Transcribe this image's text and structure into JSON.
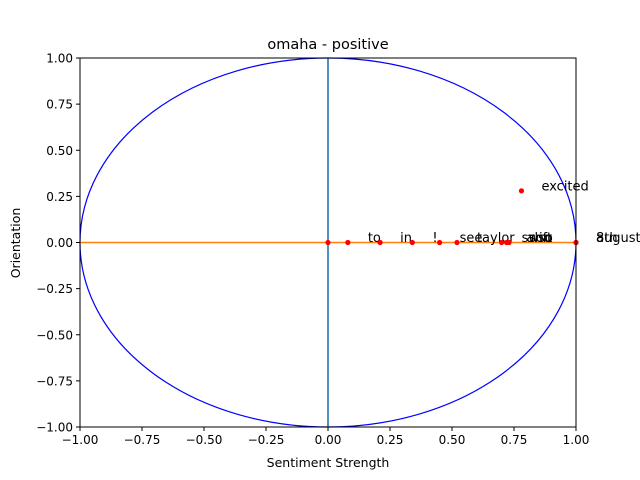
{
  "chart_data": {
    "type": "scatter",
    "title": "omaha - positive",
    "xlabel": "Sentiment Strength",
    "ylabel": "Orientation",
    "xlim": [
      -1.0,
      1.0
    ],
    "ylim": [
      -1.0,
      1.0
    ],
    "grid": false,
    "x_ticks": [
      "−1.00",
      "−0.75",
      "−0.50",
      "−0.25",
      "0.00",
      "0.25",
      "0.50",
      "0.75",
      "1.00"
    ],
    "y_ticks": [
      "−1.00",
      "−0.75",
      "−0.50",
      "−0.25",
      "0.00",
      "0.25",
      "0.50",
      "0.75",
      "1.00"
    ],
    "x_tick_values": [
      -1.0,
      -0.75,
      -0.5,
      -0.25,
      0.0,
      0.25,
      0.5,
      0.75,
      1.0
    ],
    "y_tick_values": [
      -1.0,
      -0.75,
      -0.5,
      -0.25,
      0.0,
      0.25,
      0.5,
      0.75,
      1.0
    ],
    "unit_circle": true,
    "points": [
      {
        "label": "",
        "x": 0.0,
        "y": 0.0
      },
      {
        "label": "to",
        "x": 0.08,
        "y": 0.0
      },
      {
        "label": "in",
        "x": 0.21,
        "y": 0.0
      },
      {
        "label": "!",
        "x": 0.34,
        "y": 0.0
      },
      {
        "label": "see",
        "x": 0.45,
        "y": 0.0
      },
      {
        "label": "taylor",
        "x": 0.52,
        "y": 0.0
      },
      {
        "label": "swift",
        "x": 0.7,
        "y": 0.0
      },
      {
        "label": "also",
        "x": 0.72,
        "y": 0.0
      },
      {
        "label": "soo",
        "x": 0.73,
        "y": 0.0
      },
      {
        "label": "excited",
        "x": 0.78,
        "y": 0.28
      },
      {
        "label": "8th",
        "x": 1.0,
        "y": 0.0
      },
      {
        "label": "august",
        "x": 1.0,
        "y": 0.0
      }
    ],
    "colors": {
      "circle": "#0000ff",
      "vertical_line": "#1f77b4",
      "horizontal_line": "#ff7f0e",
      "points": "#ff0000"
    }
  }
}
